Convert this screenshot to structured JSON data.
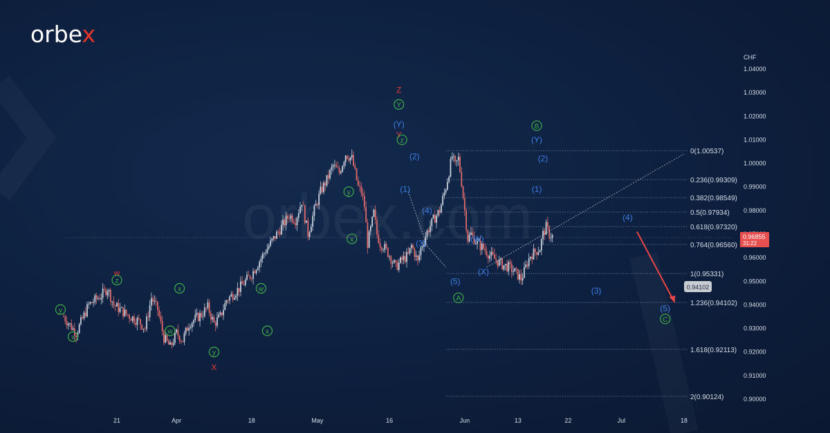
{
  "brand": {
    "prefix": "orbe",
    "accent": "x",
    "accent_color": "#e6352b",
    "watermark": "orbex.com"
  },
  "colors": {
    "up": "#c9d1dc",
    "down": "#e06a6a",
    "wave_blue": "#3d7ee6",
    "wave_green": "#3fae49",
    "wave_red": "#e43c32",
    "fib_line": "#7c8aa3",
    "text": "#d8dee8",
    "price_tag": "#e84f4f"
  },
  "chart_data": {
    "type": "candlestick",
    "currency": "CHF",
    "ylim": [
      0.895,
      1.045
    ],
    "y_ticks": [
      "1.04000",
      "1.03000",
      "1.02000",
      "1.01000",
      "1.00000",
      "0.99000",
      "0.98000",
      "0.97000",
      "0.96000",
      "0.95000",
      "0.94000",
      "0.93000",
      "0.92000",
      "0.91000",
      "0.90000"
    ],
    "x_ticks": [
      "21",
      "Apr",
      "18",
      "May",
      "16",
      "Jun",
      "13",
      "22",
      "Jul",
      "18"
    ],
    "price_path": [
      [
        0,
        0.935
      ],
      [
        4,
        0.928
      ],
      [
        8,
        0.94
      ],
      [
        12,
        0.944
      ],
      [
        14,
        0.947
      ],
      [
        16,
        0.94
      ],
      [
        20,
        0.936
      ],
      [
        24,
        0.933
      ],
      [
        26,
        0.93
      ],
      [
        28,
        0.943
      ],
      [
        30,
        0.938
      ],
      [
        32,
        0.926
      ],
      [
        34,
        0.922
      ],
      [
        36,
        0.928
      ],
      [
        38,
        0.925
      ],
      [
        40,
        0.932
      ],
      [
        44,
        0.936
      ],
      [
        46,
        0.939
      ],
      [
        48,
        0.932
      ],
      [
        50,
        0.935
      ],
      [
        52,
        0.942
      ],
      [
        56,
        0.947
      ],
      [
        60,
        0.953
      ],
      [
        64,
        0.962
      ],
      [
        68,
        0.97
      ],
      [
        72,
        0.978
      ],
      [
        74,
        0.976
      ],
      [
        76,
        0.984
      ],
      [
        78,
        0.97
      ],
      [
        80,
        0.98
      ],
      [
        82,
        0.988
      ],
      [
        84,
        0.993
      ],
      [
        86,
        0.999
      ],
      [
        88,
        0.996
      ],
      [
        90,
        1.004
      ],
      [
        92,
        1.002
      ],
      [
        94,
        0.99
      ],
      [
        95,
        0.988
      ],
      [
        96,
        0.982
      ],
      [
        97,
        0.966
      ],
      [
        98,
        0.972
      ],
      [
        99,
        0.979
      ],
      [
        100,
        0.97
      ],
      [
        101,
        0.966
      ],
      [
        102,
        0.965
      ],
      [
        104,
        0.961
      ],
      [
        106,
        0.956
      ],
      [
        108,
        0.959
      ],
      [
        110,
        0.961
      ],
      [
        111,
        0.965
      ],
      [
        112,
        0.962
      ],
      [
        113,
        0.958
      ],
      [
        114,
        0.964
      ],
      [
        116,
        0.971
      ],
      [
        118,
        0.976
      ],
      [
        120,
        0.98
      ],
      [
        122,
        0.99
      ],
      [
        124,
        1.003
      ],
      [
        125,
        0.999
      ],
      [
        126,
        1.002
      ],
      [
        127,
        0.992
      ],
      [
        128,
        0.98
      ],
      [
        129,
        0.968
      ],
      [
        130,
        0.97
      ],
      [
        132,
        0.966
      ],
      [
        134,
        0.964
      ],
      [
        136,
        0.961
      ],
      [
        138,
        0.959
      ],
      [
        140,
        0.957
      ],
      [
        142,
        0.956
      ],
      [
        144,
        0.954
      ],
      [
        146,
        0.951
      ],
      [
        147,
        0.954
      ],
      [
        148,
        0.958
      ],
      [
        149,
        0.961
      ],
      [
        150,
        0.962
      ],
      [
        152,
        0.964
      ],
      [
        153,
        0.97
      ],
      [
        154,
        0.973
      ],
      [
        155,
        0.97
      ],
      [
        156,
        0.969
      ]
    ],
    "projection": {
      "from": [
        0.971
      ],
      "to": [
        0.941
      ]
    },
    "fib_levels": [
      {
        "label": "0(1.00537)",
        "value": 1.00537
      },
      {
        "label": "0.236(0.99309)",
        "value": 0.99309
      },
      {
        "label": "0.382(0.98549)",
        "value": 0.98549
      },
      {
        "label": "0.5(0.97934)",
        "value": 0.97934
      },
      {
        "label": "0.618(0.97320)",
        "value": 0.9732
      },
      {
        "label": "0.764(0.96560)",
        "value": 0.9656
      },
      {
        "label": "1(0.95331)",
        "value": 0.95331
      },
      {
        "label": "1.236(0.94102)",
        "value": 0.94102
      },
      {
        "label": "1.618(0.92113)",
        "value": 0.92113
      },
      {
        "label": "2(0.90124)",
        "value": 0.90124
      }
    ],
    "current_price": {
      "value": "0.96855",
      "countdown": "31:22",
      "level": 0.96855
    },
    "target_label": {
      "value": "0.94102",
      "level": 0.94102
    },
    "wave_labels": [
      {
        "text": "y",
        "color": "wave_green",
        "circle": true,
        "t": -1,
        "p": 0.938
      },
      {
        "text": "x",
        "color": "wave_green",
        "circle": true,
        "t": 3,
        "p": 0.9265
      },
      {
        "text": "w",
        "color": "wave_red",
        "circle": false,
        "t": 17,
        "p": 0.9535
      },
      {
        "text": "z",
        "color": "wave_green",
        "circle": true,
        "t": 17,
        "p": 0.9505
      },
      {
        "text": "x",
        "color": "wave_green",
        "circle": true,
        "t": 37,
        "p": 0.947
      },
      {
        "text": "w",
        "color": "wave_green",
        "circle": true,
        "t": 34,
        "p": 0.929
      },
      {
        "text": "y",
        "color": "wave_green",
        "circle": true,
        "t": 48,
        "p": 0.92
      },
      {
        "text": "X",
        "color": "wave_red",
        "circle": false,
        "t": 48,
        "p": 0.9135
      },
      {
        "text": "w",
        "color": "wave_green",
        "circle": true,
        "t": 63,
        "p": 0.947
      },
      {
        "text": "x",
        "color": "wave_green",
        "circle": true,
        "t": 65,
        "p": 0.929
      },
      {
        "text": "y",
        "color": "wave_green",
        "circle": true,
        "t": 91,
        "p": 0.988
      },
      {
        "text": "x",
        "color": "wave_green",
        "circle": true,
        "t": 92,
        "p": 0.968
      },
      {
        "text": "Z",
        "color": "wave_red",
        "circle": false,
        "t": 107,
        "p": 1.031
      },
      {
        "text": "Y",
        "color": "wave_green",
        "circle": true,
        "t": 107,
        "p": 1.025
      },
      {
        "text": "(Y)",
        "color": "wave_blue",
        "circle": false,
        "t": 107,
        "p": 1.0165
      },
      {
        "text": "Y",
        "color": "wave_red",
        "circle": false,
        "t": 107,
        "p": 1.012
      },
      {
        "text": "z",
        "color": "wave_green",
        "circle": true,
        "t": 108,
        "p": 1.01
      },
      {
        "text": "(2)",
        "color": "wave_blue",
        "circle": false,
        "t": 112,
        "p": 1.003
      },
      {
        "text": "(1)",
        "color": "wave_blue",
        "circle": false,
        "t": 109,
        "p": 0.989
      },
      {
        "text": "(4)",
        "color": "wave_blue",
        "circle": false,
        "t": 116,
        "p": 0.98
      },
      {
        "text": "(3)",
        "color": "wave_blue",
        "circle": false,
        "t": 114,
        "p": 0.966
      },
      {
        "text": "(5)",
        "color": "wave_blue",
        "circle": false,
        "t": 125,
        "p": 0.95
      },
      {
        "text": "A",
        "color": "wave_green",
        "circle": true,
        "t": 126,
        "p": 0.943
      },
      {
        "text": "(W)",
        "color": "wave_blue",
        "circle": false,
        "t": 132,
        "p": 0.968
      },
      {
        "text": "(X)",
        "color": "wave_blue",
        "circle": false,
        "t": 134,
        "p": 0.954
      },
      {
        "text": "B",
        "color": "wave_green",
        "circle": true,
        "t": 151,
        "p": 1.016
      },
      {
        "text": "(Y)",
        "color": "wave_blue",
        "circle": false,
        "t": 151,
        "p": 1.01
      },
      {
        "text": "(2)",
        "color": "wave_blue",
        "circle": false,
        "t": 153,
        "p": 1.002
      },
      {
        "text": "(1)",
        "color": "wave_blue",
        "circle": false,
        "t": 151,
        "p": 0.989
      },
      {
        "text": "(3)",
        "color": "wave_blue",
        "circle": false,
        "t": 170,
        "p": 0.946
      },
      {
        "text": "(4)",
        "color": "wave_blue",
        "circle": false,
        "t": 180,
        "p": 0.977
      },
      {
        "text": "(5)",
        "color": "wave_blue",
        "circle": false,
        "t": 192,
        "p": 0.9385
      },
      {
        "text": "C",
        "color": "wave_green",
        "circle": true,
        "t": 192,
        "p": 0.934
      }
    ]
  }
}
